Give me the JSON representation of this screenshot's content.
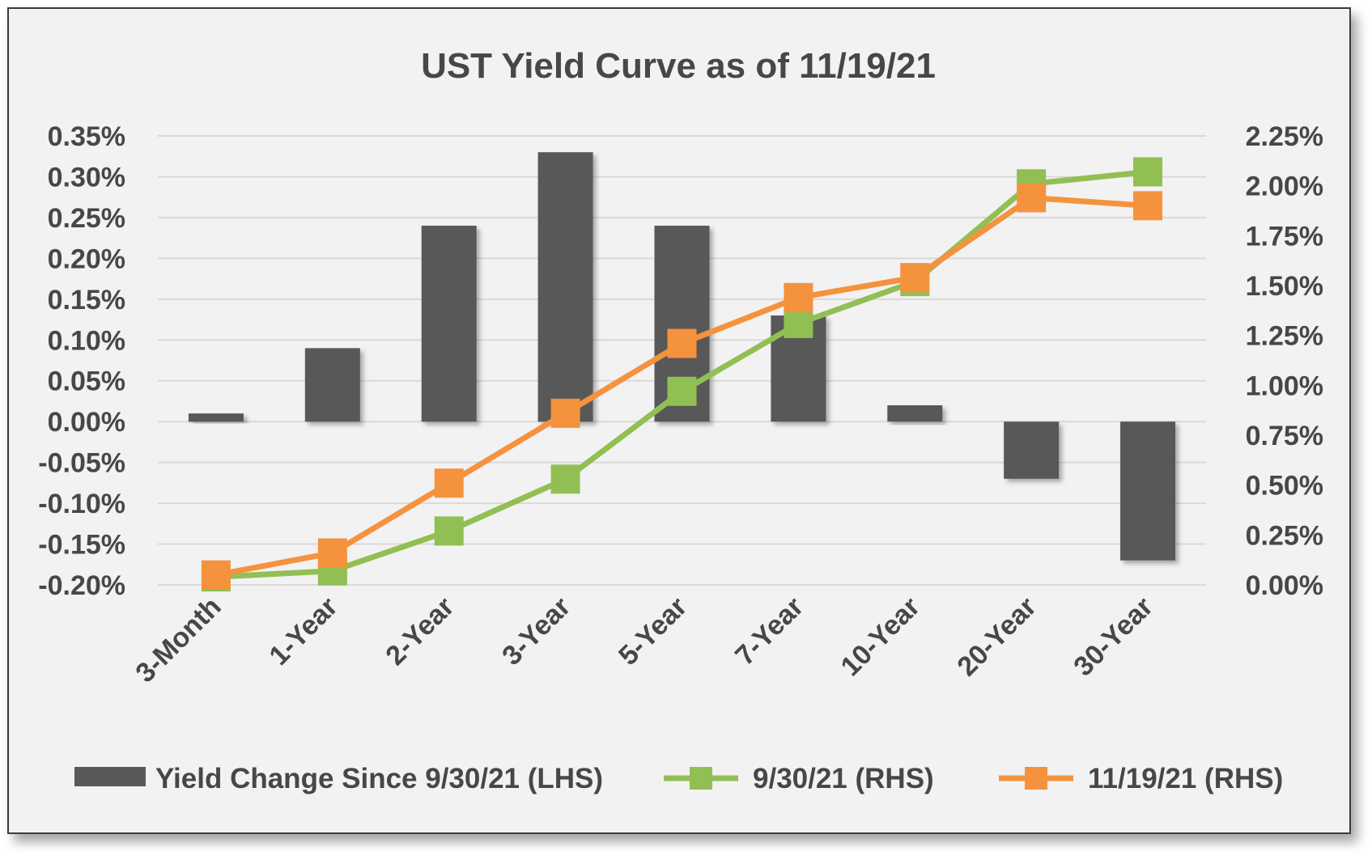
{
  "chart_data": {
    "type": "bar",
    "title": "UST Yield Curve as of 11/19/21",
    "categories": [
      "3-Month",
      "1-Year",
      "2-Year",
      "3-Year",
      "5-Year",
      "7-Year",
      "10-Year",
      "20-Year",
      "30-Year"
    ],
    "series": [
      {
        "name": "Yield Change Since 9/30/21 (LHS)",
        "type": "bar",
        "axis": "left",
        "color": "#595959",
        "values": [
          0.01,
          0.09,
          0.24,
          0.33,
          0.24,
          0.13,
          0.02,
          -0.07,
          -0.17
        ]
      },
      {
        "name": "9/30/21 (RHS)",
        "type": "line",
        "axis": "right",
        "color": "#92BF53",
        "values": [
          0.04,
          0.07,
          0.27,
          0.53,
          0.97,
          1.31,
          1.52,
          2.01,
          2.07
        ]
      },
      {
        "name": "11/19/21 (RHS)",
        "type": "line",
        "axis": "right",
        "color": "#F5923E",
        "values": [
          0.05,
          0.16,
          0.51,
          0.86,
          1.21,
          1.44,
          1.54,
          1.94,
          1.9
        ]
      }
    ],
    "y_left": {
      "min": -0.2,
      "max": 0.35,
      "step": 0.05,
      "ticks": [
        "0.35%",
        "0.30%",
        "0.25%",
        "0.20%",
        "0.15%",
        "0.10%",
        "0.05%",
        "0.00%",
        "-0.05%",
        "-0.10%",
        "-0.15%",
        "-0.20%"
      ]
    },
    "y_right": {
      "min": 0.0,
      "max": 2.25,
      "step": 0.25,
      "ticks": [
        "2.25%",
        "2.00%",
        "1.75%",
        "1.50%",
        "1.25%",
        "1.00%",
        "0.75%",
        "0.50%",
        "0.25%",
        "0.00%"
      ]
    },
    "grid": true,
    "legend_position": "bottom"
  }
}
